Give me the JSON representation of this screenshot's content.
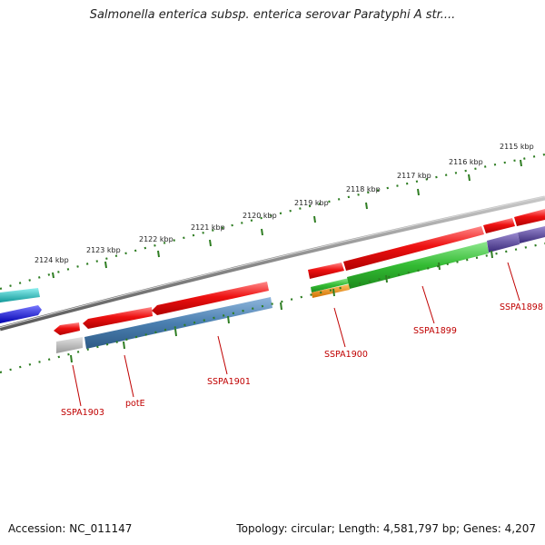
{
  "header": {
    "title": "Salmonella enterica subsp. enterica serovar Paratyphi A str...."
  },
  "footer": {
    "accession": "Accession: NC_011147",
    "summary": "Topology: circular; Length: 4,581,797 bp; Genes: 4,207"
  },
  "scale": {
    "ticks": [
      {
        "label": "2124 kbp"
      },
      {
        "label": "2123 kbp"
      },
      {
        "label": "2122 kbp"
      },
      {
        "label": "2121 kbp"
      },
      {
        "label": "2120 kbp"
      },
      {
        "label": "2119 kbp"
      },
      {
        "label": "2118 kbp"
      },
      {
        "label": "2117 kbp"
      },
      {
        "label": "2116 kbp"
      },
      {
        "label": "2115 kbp"
      }
    ]
  },
  "genes": {
    "labels": [
      {
        "text": "SSPA1903"
      },
      {
        "text": "potE"
      },
      {
        "text": "SSPA1901"
      },
      {
        "text": "SSPA1900"
      },
      {
        "text": "SSPA1899"
      },
      {
        "text": "SSPA1898"
      }
    ]
  },
  "colors": {
    "cds": "#ee1111",
    "backbone": "#888888",
    "tick_track": "#2e7d22",
    "label": "#c00000",
    "steel_blue": "#4a7fb0",
    "green": "#33bb33",
    "orange": "#f08c00",
    "grey": "#b0b0b0",
    "cyan": "#22c8c8",
    "blue": "#1a1aee",
    "purple": "#5a4a9a"
  }
}
